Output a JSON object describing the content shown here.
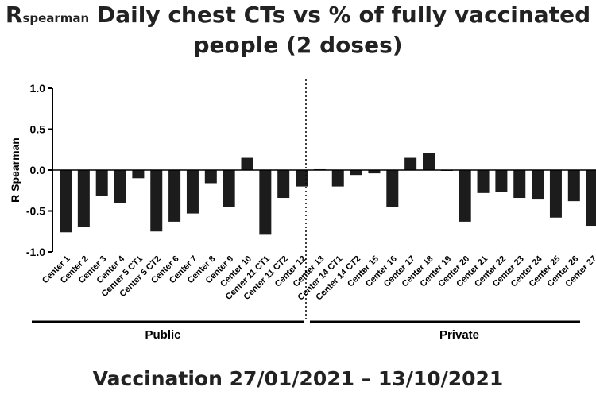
{
  "title": {
    "r_main": "R",
    "r_sub": "spearman",
    "line1_rest": " Daily chest CTs vs % of fully vaccinated",
    "line2": "people (2 doses)"
  },
  "footer": "Vaccination 27/01/2021 – 13/10/2021",
  "chart_data": {
    "type": "bar",
    "ylabel": "R Spearman",
    "ylim": [
      -1.0,
      1.0
    ],
    "yticks": [
      "1.0",
      "0.5",
      "0.0",
      "-0.5",
      "-1.0"
    ],
    "categories": [
      "Center 1",
      "Center 2",
      "Center 3",
      "Center 4",
      "Center 5 CT1",
      "Center 5 CT2",
      "Center 6",
      "Center 7",
      "Center 8",
      "Center 9",
      "Center 10",
      "Center 11 CT1",
      "Center 11 CT2",
      "Center 12",
      "Center 13",
      "Center 14 CT1",
      "Center 14 CT2",
      "Center 15",
      "Center 16",
      "Center 17",
      "Center 18",
      "Center 19",
      "Center 20",
      "Center 21",
      "Center 22",
      "Center 23",
      "Center 24",
      "Center 25",
      "Center 26",
      "Center 27"
    ],
    "values": [
      -0.76,
      -0.69,
      -0.32,
      -0.4,
      -0.1,
      -0.75,
      -0.63,
      -0.53,
      -0.16,
      -0.45,
      0.15,
      -0.79,
      -0.34,
      -0.2,
      0.01,
      -0.2,
      -0.06,
      -0.04,
      -0.45,
      0.15,
      0.21,
      0.0,
      -0.63,
      -0.28,
      -0.27,
      -0.34,
      -0.36,
      -0.58,
      -0.38,
      -0.68
    ],
    "groups": [
      {
        "label": "Public"
      },
      {
        "label": "Private"
      }
    ]
  }
}
